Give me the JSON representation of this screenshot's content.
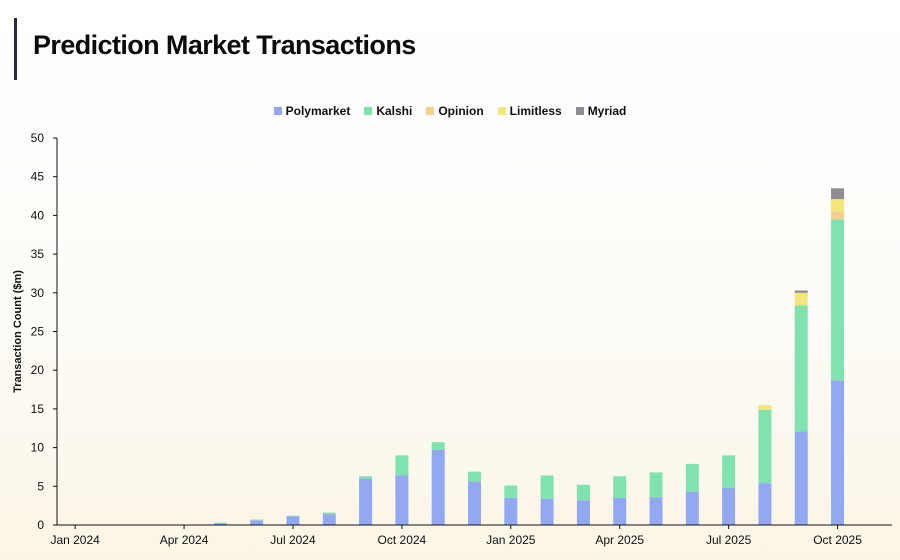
{
  "header": {
    "title": "Prediction Market Transactions"
  },
  "chart_data": {
    "type": "bar",
    "stacked": true,
    "title": "Prediction Market Transactions",
    "xlabel": "",
    "ylabel": "Transaction Count ($m)",
    "ylim": [
      0,
      50
    ],
    "yticks": [
      "0",
      "5",
      "10",
      "15",
      "20",
      "25",
      "30",
      "35",
      "40",
      "45",
      "50"
    ],
    "grid": false,
    "legend_position": "top",
    "categories": [
      "Jan 2024",
      "Feb 2024",
      "Mar 2024",
      "Apr 2024",
      "May 2024",
      "Jun 2024",
      "Jul 2024",
      "Aug 2024",
      "Sep 2024",
      "Oct 2024",
      "Nov 2024",
      "Dec 2024",
      "Jan 2025",
      "Feb 2025",
      "Mar 2025",
      "Apr 2025",
      "May 2025",
      "Jun 2025",
      "Jul 2025",
      "Aug 2025",
      "Sep 2025",
      "Oct 2025",
      "Nov 2025"
    ],
    "x_tick_labels": [
      "Jan 2024",
      "Apr 2024",
      "Jul 2024",
      "Oct 2024",
      "Jan 2025",
      "Apr 2025",
      "Jul 2025",
      "Oct 2025"
    ],
    "series": [
      {
        "name": "Polymarket",
        "color": "#93a8f2",
        "values": [
          0.05,
          0.05,
          0.05,
          0.05,
          0.2,
          0.6,
          1.1,
          1.4,
          6.0,
          6.4,
          9.7,
          5.6,
          3.5,
          3.4,
          3.2,
          3.5,
          3.6,
          4.3,
          4.8,
          5.4,
          12.1,
          18.7,
          0
        ]
      },
      {
        "name": "Kalshi",
        "color": "#7fe3b0",
        "values": [
          0,
          0,
          0,
          0,
          0.1,
          0.1,
          0.1,
          0.2,
          0.3,
          2.6,
          1.0,
          1.3,
          1.6,
          3.0,
          2.0,
          2.8,
          3.2,
          3.6,
          4.2,
          9.5,
          16.2,
          20.8,
          0
        ]
      },
      {
        "name": "Opinion",
        "color": "#f5cf90",
        "values": [
          0,
          0,
          0,
          0,
          0,
          0,
          0,
          0,
          0,
          0,
          0,
          0,
          0,
          0,
          0,
          0,
          0,
          0,
          0,
          0,
          0.2,
          1.0,
          0
        ]
      },
      {
        "name": "Limitless",
        "color": "#f5e67a",
        "values": [
          0,
          0,
          0,
          0,
          0,
          0,
          0,
          0,
          0,
          0,
          0,
          0,
          0,
          0,
          0,
          0,
          0,
          0,
          0,
          0.6,
          1.5,
          1.6,
          0
        ]
      },
      {
        "name": "Myriad",
        "color": "#8e8e94",
        "values": [
          0,
          0,
          0,
          0,
          0,
          0,
          0,
          0,
          0,
          0,
          0,
          0,
          0,
          0,
          0,
          0,
          0,
          0,
          0,
          0,
          0.3,
          1.4,
          0
        ]
      }
    ]
  }
}
